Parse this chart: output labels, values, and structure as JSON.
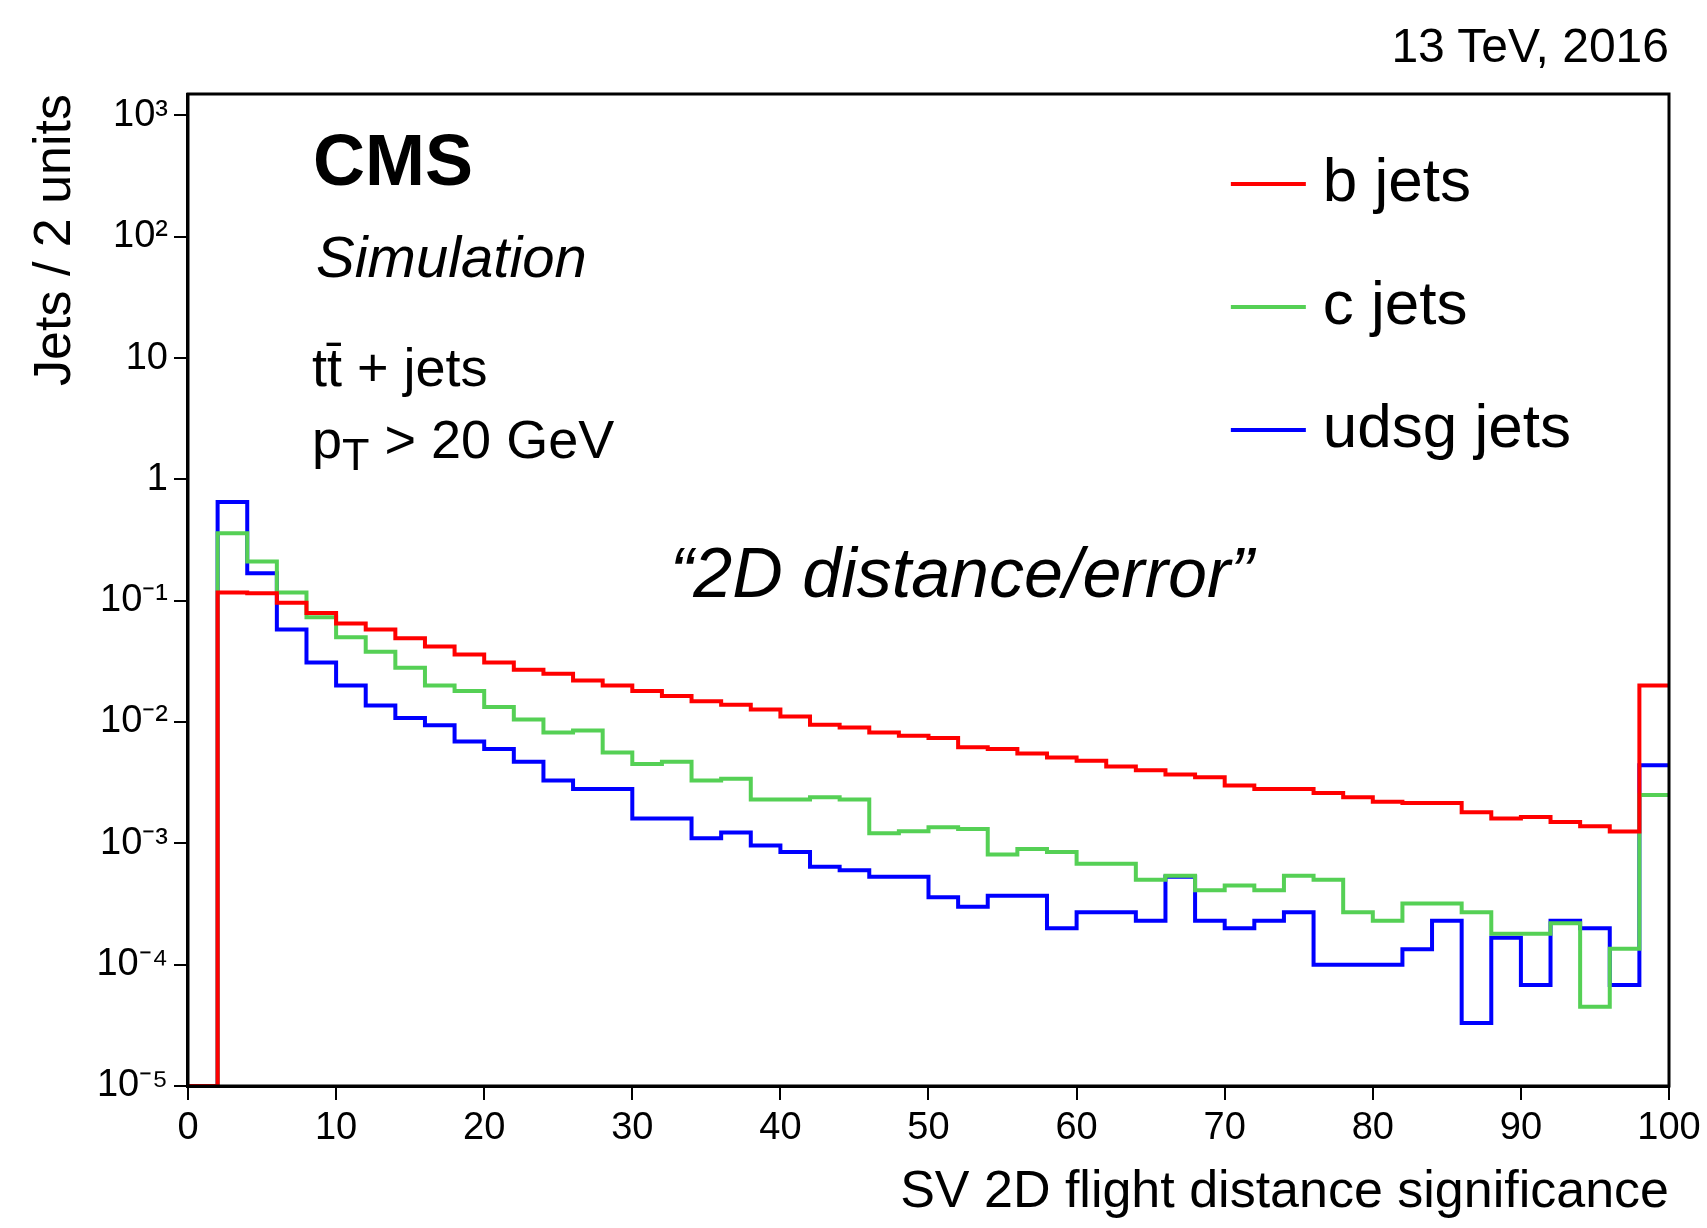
{
  "chart_data": {
    "type": "histogram",
    "xlabel": "SV 2D flight distance significance",
    "ylabel": "Jets / 2 units",
    "annotations": [
      "CMS",
      "Simulation",
      "tt̄ + jets",
      "p$_{T}$ > 20 GeV",
      "“2D distance/error”",
      "13 TeV, 2016"
    ],
    "bins": [
      0,
      2,
      4,
      6,
      8,
      10,
      12,
      14,
      16,
      18,
      20,
      22,
      24,
      26,
      28,
      30,
      32,
      34,
      36,
      38,
      40,
      42,
      44,
      46,
      48,
      50,
      52,
      54,
      56,
      58,
      60,
      62,
      64,
      66,
      68,
      70,
      72,
      74,
      76,
      78,
      80,
      82,
      84,
      86,
      88,
      90,
      92,
      94,
      96,
      98,
      100
    ],
    "series": [
      {
        "name": "b jets",
        "color": "#ff0000",
        "values": [
          1e-05,
          0.117,
          0.115,
          0.096,
          0.079,
          0.065,
          0.058,
          0.049,
          0.042,
          0.036,
          0.031,
          0.027,
          0.025,
          0.022,
          0.02,
          0.018,
          0.0164,
          0.0148,
          0.0139,
          0.0127,
          0.0111,
          0.0095,
          0.009,
          0.0082,
          0.0077,
          0.0074,
          0.0062,
          0.006,
          0.0055,
          0.0051,
          0.0048,
          0.0043,
          0.004,
          0.0037,
          0.0035,
          0.003,
          0.0028,
          0.0028,
          0.0026,
          0.0024,
          0.0022,
          0.00215,
          0.00215,
          0.0018,
          0.0016,
          0.00165,
          0.0015,
          0.00138,
          0.00125,
          0.02
        ]
      },
      {
        "name": "c jets",
        "color": "#55d055",
        "values": [
          1e-05,
          0.36,
          0.21,
          0.117,
          0.073,
          0.05,
          0.038,
          0.028,
          0.02,
          0.018,
          0.0133,
          0.0105,
          0.0082,
          0.0085,
          0.0056,
          0.0045,
          0.0047,
          0.0033,
          0.0034,
          0.0023,
          0.0023,
          0.0024,
          0.0023,
          0.00121,
          0.00126,
          0.00136,
          0.00131,
          0.00081,
          0.0009,
          0.00085,
          0.00068,
          0.00068,
          0.0005,
          0.00054,
          0.00041,
          0.00045,
          0.00041,
          0.00054,
          0.0005,
          0.00027,
          0.00023,
          0.00032,
          0.00032,
          0.00027,
          0.00018,
          0.00018,
          0.00022,
          4.5e-05,
          0.000135,
          0.0025
        ]
      },
      {
        "name": "udsg jets",
        "color": "#0000ff",
        "values": [
          1e-05,
          0.65,
          0.168,
          0.058,
          0.031,
          0.02,
          0.0137,
          0.0108,
          0.0094,
          0.0069,
          0.006,
          0.0047,
          0.0033,
          0.0028,
          0.0028,
          0.0016,
          0.0016,
          0.0011,
          0.00123,
          0.00096,
          0.00085,
          0.00064,
          0.0006,
          0.00053,
          0.00053,
          0.00036,
          0.0003,
          0.00037,
          0.00037,
          0.0002,
          0.00027,
          0.00027,
          0.00023,
          0.00053,
          0.00023,
          0.0002,
          0.00023,
          0.00027,
          0.0001,
          0.0001,
          0.0001,
          0.000134,
          0.00023,
          3.3e-05,
          0.000167,
          6.8e-05,
          0.00023,
          0.0002,
          6.8e-05,
          0.0044
        ]
      }
    ],
    "xlim": [
      0,
      100
    ],
    "xticks": [
      0,
      10,
      20,
      30,
      40,
      50,
      60,
      70,
      80,
      90,
      100
    ],
    "ylim": [
      1e-05,
      1500
    ],
    "yticks": [
      {
        "value": 1e-05,
        "label": "10⁻⁵"
      },
      {
        "value": 0.0001,
        "label": "10⁻⁴"
      },
      {
        "value": 0.001,
        "label": "10⁻³"
      },
      {
        "value": 0.01,
        "label": "10⁻²"
      },
      {
        "value": 0.1,
        "label": "10⁻¹"
      },
      1,
      10,
      {
        "value": 100,
        "label": "10²"
      },
      {
        "value": 1000,
        "label": "10³"
      }
    ],
    "log": "y",
    "grid": false,
    "legend": "top right",
    "line_style": "solid",
    "marker": "none"
  }
}
